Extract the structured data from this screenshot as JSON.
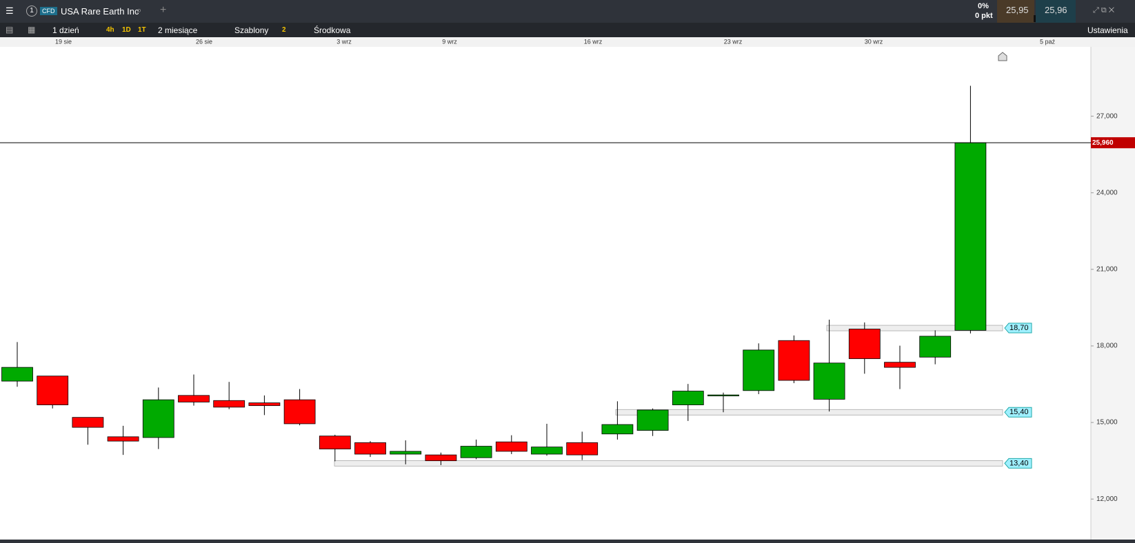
{
  "toolbar": {
    "instrument_tag": "CFD",
    "instrument": "USA Rare Earth Inc",
    "window_number": "1",
    "change_pct": "0%",
    "change_pts": "0 pkt",
    "sell": "25,95",
    "buy": "25,96",
    "quantity": "1",
    "interval": "1 dzień",
    "quick_intervals": [
      "4h",
      "1D",
      "1T"
    ],
    "range": "2 miesiące",
    "templates": "Szablony",
    "templates_count": "2",
    "price_mode": "Środkowa",
    "settings": "Ustawienia"
  },
  "chart_data": {
    "type": "candlestick",
    "x": [
      "19 sie",
      "26 sie",
      "3 wrz",
      "9 wrz",
      "16 wrz",
      "23 wrz",
      "30 wrz",
      "5 paź"
    ],
    "candles": [
      {
        "open": 16.62,
        "high": 18.15,
        "low": 16.4,
        "close": 17.16
      },
      {
        "open": 16.82,
        "high": 16.82,
        "low": 15.55,
        "close": 15.69
      },
      {
        "open": 15.2,
        "high": 15.2,
        "low": 14.13,
        "close": 14.81
      },
      {
        "open": 14.44,
        "high": 14.87,
        "low": 13.73,
        "close": 14.27
      },
      {
        "open": 14.41,
        "high": 16.37,
        "low": 13.96,
        "close": 15.89
      },
      {
        "open": 16.06,
        "high": 16.88,
        "low": 15.66,
        "close": 15.8
      },
      {
        "open": 15.86,
        "high": 16.59,
        "low": 15.52,
        "close": 15.6
      },
      {
        "open": 15.77,
        "high": 16.06,
        "low": 15.29,
        "close": 15.66
      },
      {
        "open": 15.89,
        "high": 16.31,
        "low": 14.89,
        "close": 14.95
      },
      {
        "open": 14.47,
        "high": 14.52,
        "low": 13.48,
        "close": 13.96
      },
      {
        "open": 14.21,
        "high": 14.27,
        "low": 13.65,
        "close": 13.76
      },
      {
        "open": 13.76,
        "high": 14.3,
        "low": 13.36,
        "close": 13.87
      },
      {
        "open": 13.73,
        "high": 13.82,
        "low": 13.33,
        "close": 13.5
      },
      {
        "open": 13.62,
        "high": 14.33,
        "low": 13.56,
        "close": 14.07
      },
      {
        "open": 14.24,
        "high": 14.5,
        "low": 13.76,
        "close": 13.87
      },
      {
        "open": 13.76,
        "high": 14.95,
        "low": 13.7,
        "close": 14.04
      },
      {
        "open": 14.21,
        "high": 14.64,
        "low": 13.53,
        "close": 13.73
      },
      {
        "open": 14.55,
        "high": 15.83,
        "low": 14.33,
        "close": 14.92
      },
      {
        "open": 14.69,
        "high": 15.55,
        "low": 14.47,
        "close": 15.49
      },
      {
        "open": 15.69,
        "high": 16.51,
        "low": 15.06,
        "close": 16.23
      },
      {
        "open": 16.08,
        "high": 16.17,
        "low": 15.4,
        "close": 16.08
      },
      {
        "open": 16.25,
        "high": 18.1,
        "low": 16.11,
        "close": 17.84
      },
      {
        "open": 18.21,
        "high": 18.41,
        "low": 16.54,
        "close": 16.65
      },
      {
        "open": 15.91,
        "high": 19.03,
        "low": 15.43,
        "close": 17.33
      },
      {
        "open": 18.66,
        "high": 18.92,
        "low": 16.91,
        "close": 17.5
      },
      {
        "open": 17.36,
        "high": 18.01,
        "low": 16.31,
        "close": 17.16
      },
      {
        "open": 17.56,
        "high": 18.61,
        "low": 17.28,
        "close": 18.38
      },
      {
        "open": 18.61,
        "high": 28.19,
        "low": 18.49,
        "close": 25.96
      }
    ],
    "up_color": "#00aa00",
    "down_color": "#ff0000",
    "ylim": [
      10.44,
      29.69
    ],
    "yticks": [
      {
        "value": 12,
        "label": "12,000"
      },
      {
        "value": 15,
        "label": "15,000"
      },
      {
        "value": 18,
        "label": "18,000"
      },
      {
        "value": 21,
        "label": "21,000"
      },
      {
        "value": 24,
        "label": "24,000"
      },
      {
        "value": 27,
        "label": "27,000"
      }
    ],
    "last_price": {
      "value": 25.96,
      "label": "25,960"
    },
    "levels": [
      {
        "value": 18.7,
        "label": "18,70"
      },
      {
        "value": 15.4,
        "label": "15,40"
      },
      {
        "value": 13.4,
        "label": "13,40"
      }
    ]
  }
}
